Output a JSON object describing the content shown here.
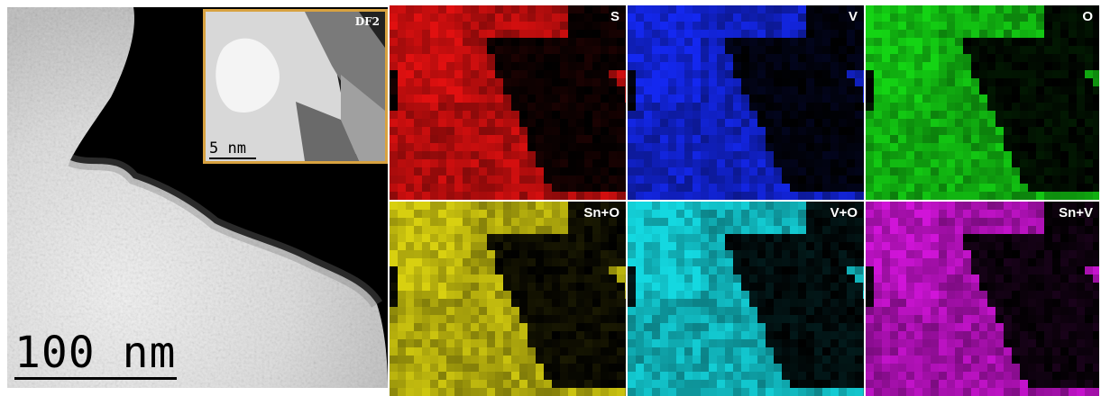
{
  "main_image": {
    "scale_label": "100 nm"
  },
  "inset": {
    "label": "DF2",
    "scale_label": "5 nm"
  },
  "maps": [
    {
      "label": "S",
      "color": "#e01010"
    },
    {
      "label": "V",
      "color": "#1428f0"
    },
    {
      "label": "O",
      "color": "#14d414"
    },
    {
      "label": "Sn+O",
      "color": "#d8d010"
    },
    {
      "label": "V+O",
      "color": "#14d8e0"
    },
    {
      "label": "Sn+V",
      "color": "#d014d8"
    }
  ]
}
